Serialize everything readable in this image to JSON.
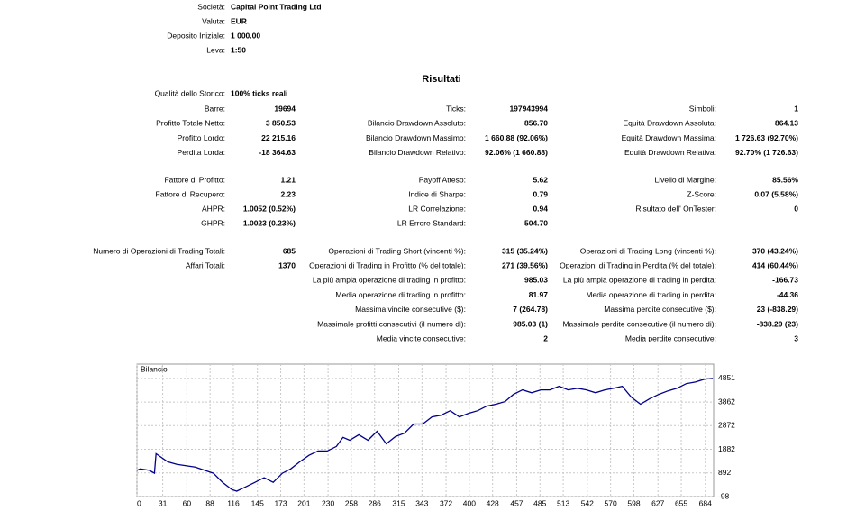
{
  "header": {
    "rows": [
      {
        "label": "Società:",
        "value": "Capital Point Trading Ltd"
      },
      {
        "label": "Valuta:",
        "value": "EUR"
      },
      {
        "label": "Deposito Iniziale:",
        "value": "1 000.00"
      },
      {
        "label": "Leva:",
        "value": "1:50"
      }
    ]
  },
  "results": {
    "title": "Risultati",
    "history_quality": {
      "label": "Qualità dello Storico:",
      "value": "100% ticks reali"
    },
    "rows": [
      [
        {
          "label": "Barre:",
          "value": "19694"
        },
        {
          "label": "Ticks:",
          "value": "197943994"
        },
        {
          "label": "Simboli:",
          "value": "1"
        }
      ],
      [
        {
          "label": "Profitto Totale Netto:",
          "value": "3 850.53"
        },
        {
          "label": "Bilancio Drawdown Assoluto:",
          "value": "856.70"
        },
        {
          "label": "Equità Drawdown Assoluta:",
          "value": "864.13"
        }
      ],
      [
        {
          "label": "Profitto Lordo:",
          "value": "22 215.16"
        },
        {
          "label": "Bilancio Drawdown Massimo:",
          "value": "1 660.88 (92.06%)"
        },
        {
          "label": "Equità Drawdown Massima:",
          "value": "1 726.63 (92.70%)"
        }
      ],
      [
        {
          "label": "Perdita Lorda:",
          "value": "-18 364.63"
        },
        {
          "label": "Bilancio Drawdown Relativo:",
          "value": "92.06% (1 660.88)"
        },
        {
          "label": "Equità Drawdown Relativa:",
          "value": "92.70% (1 726.63)"
        }
      ],
      [
        {
          "label": "Fattore di Profitto:",
          "value": "1.21"
        },
        {
          "label": "Payoff Atteso:",
          "value": "5.62"
        },
        {
          "label": "Livello di Margine:",
          "value": "85.56%"
        }
      ],
      [
        {
          "label": "Fattore di Recupero:",
          "value": "2.23"
        },
        {
          "label": "Indice di Sharpe:",
          "value": "0.79"
        },
        {
          "label": "Z-Score:",
          "value": "0.07 (5.58%)"
        }
      ],
      [
        {
          "label": "AHPR:",
          "value": "1.0052 (0.52%)"
        },
        {
          "label": "LR Correlazione:",
          "value": "0.94"
        },
        {
          "label": "Risultato dell' OnTester:",
          "value": "0"
        }
      ],
      [
        {
          "label": "GHPR:",
          "value": "1.0023 (0.23%)"
        },
        {
          "label": "LR Errore Standard:",
          "value": "504.70"
        },
        null
      ],
      [
        {
          "label": "Numero di Operazioni di Trading Totali:",
          "value": "685"
        },
        {
          "label": "Operazioni di Trading Short (vincenti %):",
          "value": "315 (35.24%)"
        },
        {
          "label": "Operazioni di Trading Long (vincenti %):",
          "value": "370 (43.24%)"
        }
      ],
      [
        {
          "label": "Affari Totali:",
          "value": "1370"
        },
        {
          "label": "Operazioni di Trading in Profitto (% del totale):",
          "value": "271 (39.56%)"
        },
        {
          "label": "Operazioni di Trading in Perdita (% del totale):",
          "value": "414 (60.44%)"
        }
      ],
      [
        null,
        {
          "label": "La più ampia operazione di trading in profitto:",
          "value": "985.03"
        },
        {
          "label": "La più ampia operazione di trading in perdita:",
          "value": "-166.73"
        }
      ],
      [
        null,
        {
          "label": "Media operazione di trading in profitto:",
          "value": "81.97"
        },
        {
          "label": "Media operazione di trading in perdita:",
          "value": "-44.36"
        }
      ],
      [
        null,
        {
          "label": "Massima vincite consecutive ($):",
          "value": "7 (264.78)"
        },
        {
          "label": "Massima perdite consecutive ($):",
          "value": "23 (-838.29)"
        }
      ],
      [
        null,
        {
          "label": "Massimale profitti consecutivi (il numero di):",
          "value": "985.03 (1)"
        },
        {
          "label": "Massimale perdite consecutive (il numero di):",
          "value": "-838.29 (23)"
        }
      ],
      [
        null,
        {
          "label": "Media vincite consecutive:",
          "value": "2"
        },
        {
          "label": "Media perdite consecutive:",
          "value": "3"
        }
      ]
    ]
  },
  "chart_data": {
    "type": "line",
    "title": "Bilancio",
    "color": "#00008b",
    "grid": true,
    "x": [
      0,
      4,
      15,
      21,
      23,
      37,
      48,
      70,
      92,
      103,
      114,
      120,
      131,
      142,
      153,
      164,
      175,
      185,
      196,
      207,
      218,
      229,
      240,
      248,
      256,
      267,
      278,
      289,
      300,
      311,
      322,
      333,
      344,
      355,
      366,
      377,
      388,
      399,
      410,
      421,
      432,
      443,
      453,
      464,
      475,
      486,
      497,
      508,
      519,
      530,
      541,
      552,
      563,
      574,
      584,
      595,
      606,
      617,
      628,
      639,
      650,
      661,
      672,
      683,
      693
    ],
    "values": [
      1000,
      1060,
      1000,
      880,
      1700,
      1360,
      1250,
      1140,
      880,
      500,
      200,
      130,
      310,
      500,
      690,
      500,
      880,
      1060,
      1360,
      1630,
      1810,
      1810,
      2000,
      2380,
      2260,
      2490,
      2260,
      2640,
      2110,
      2410,
      2560,
      2940,
      2940,
      3240,
      3310,
      3500,
      3240,
      3390,
      3500,
      3690,
      3770,
      3880,
      4180,
      4370,
      4250,
      4370,
      4370,
      4520,
      4370,
      4440,
      4370,
      4250,
      4370,
      4440,
      4520,
      4060,
      3770,
      4000,
      4180,
      4330,
      4440,
      4630,
      4700,
      4820,
      4851
    ],
    "xlim": [
      0,
      694
    ],
    "ylim": [
      -98,
      5450
    ],
    "xticks": [
      0,
      31,
      60,
      88,
      116,
      145,
      173,
      201,
      230,
      258,
      286,
      315,
      343,
      372,
      400,
      428,
      457,
      485,
      513,
      542,
      570,
      598,
      627,
      655,
      684
    ],
    "yticks": [
      -98,
      892,
      1882,
      2872,
      3862,
      4851
    ]
  }
}
